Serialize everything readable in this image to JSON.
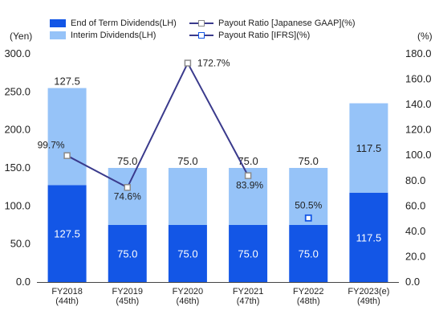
{
  "legend": {
    "end_dividends": "End of Term Dividends(LH)",
    "interim_dividends": "Interim Dividends(LH)",
    "payout_jgaap": "Payout Ratio [Japanese GAAP](%)",
    "payout_ifrs": "Payout Ratio [IFRS](%)"
  },
  "axis_units": {
    "left": "(Yen)",
    "right": "(%)"
  },
  "colors": {
    "end_dividends": "#1356e6",
    "interim_dividends": "#96c3f8",
    "payout_line": "#3a3a8c",
    "marker_jgaap": "#8a8a8a",
    "marker_ifrs": "#1356e6"
  },
  "chart_data": {
    "type": "bar",
    "categories": [
      [
        "FY2018",
        "(44th)"
      ],
      [
        "FY2019",
        "(45th)"
      ],
      [
        "FY2020",
        "(46th)"
      ],
      [
        "FY2021",
        "(47th)"
      ],
      [
        "FY2022",
        "(48th)"
      ],
      [
        "FY2023(e)",
        "(49th)"
      ]
    ],
    "ylim": [
      0,
      300
    ],
    "yticks": [
      "0.0",
      "50.0",
      "100.0",
      "150.0",
      "200.0",
      "250.0",
      "300.0"
    ],
    "y2lim": [
      0,
      180
    ],
    "y2ticks": [
      "0.0",
      "20.0",
      "40.0",
      "60.0",
      "80.0",
      "100.0",
      "120.0",
      "140.0",
      "160.0",
      "180.0"
    ],
    "series": [
      {
        "name": "End of Term Dividends(LH)",
        "stack": "dividends",
        "values": [
          127.5,
          75.0,
          75.0,
          75.0,
          75.0,
          117.5
        ],
        "labels": [
          "127.5",
          "75.0",
          "75.0",
          "75.0",
          "75.0",
          "117.5"
        ]
      },
      {
        "name": "Interim Dividends(LH)",
        "stack": "dividends",
        "values": [
          127.5,
          75.0,
          75.0,
          75.0,
          75.0,
          117.5
        ],
        "labels": [
          "",
          "",
          "",
          "",
          "",
          "117.5"
        ]
      }
    ],
    "totals": [
      "127.5",
      "75.0",
      "75.0",
      "75.0",
      "75.0",
      ""
    ],
    "payout_jgaap": {
      "name": "Payout Ratio [Japanese GAAP](%)",
      "values": [
        99.7,
        74.6,
        172.7,
        83.9
      ],
      "labels": [
        "99.7%",
        "74.6%",
        "172.7%",
        "83.9%"
      ]
    },
    "payout_ifrs": {
      "name": "Payout Ratio [IFRS](%)",
      "category_index": 4,
      "value": 50.5,
      "label": "50.5%"
    }
  }
}
